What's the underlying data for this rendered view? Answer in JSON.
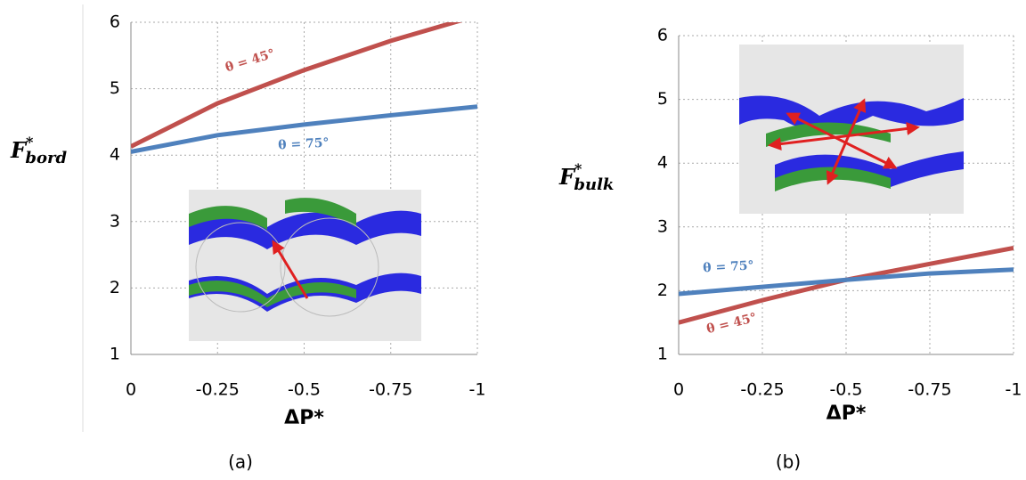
{
  "chart_data": [
    {
      "type": "line",
      "caption": "(a)",
      "x_label": "ΔP*",
      "y_label": "F",
      "y_label_sup": "*",
      "y_label_sub": "bord",
      "x": [
        0,
        -0.25,
        -0.5,
        -0.75,
        -1
      ],
      "xlim": [
        0,
        -1
      ],
      "xticks": [
        0,
        -0.25,
        -0.5,
        -0.75,
        -1
      ],
      "ylim": [
        1,
        6
      ],
      "yticks": [
        1,
        2,
        3,
        4,
        5,
        6
      ],
      "grid": true,
      "series": [
        {
          "name": "θ = 45°",
          "color": "#c0504d",
          "values": [
            4.13,
            4.78,
            5.28,
            5.72,
            6.1
          ]
        },
        {
          "name": "θ = 75°",
          "color": "#4f81bd",
          "values": [
            4.05,
            4.3,
            4.46,
            4.6,
            4.73
          ]
        }
      ]
    },
    {
      "type": "line",
      "caption": "(b)",
      "x_label": "ΔP*",
      "y_label": "F",
      "y_label_sup": "*",
      "y_label_sub": "bulk",
      "x": [
        0,
        -0.25,
        -0.5,
        -0.75,
        -1
      ],
      "xlim": [
        0,
        -1
      ],
      "xticks": [
        0,
        -0.25,
        -0.5,
        -0.75,
        -1
      ],
      "ylim": [
        1,
        6
      ],
      "yticks": [
        1,
        2,
        3,
        4,
        5,
        6
      ],
      "grid": true,
      "series": [
        {
          "name": "θ = 45°",
          "color": "#c0504d",
          "values": [
            1.5,
            1.85,
            2.17,
            2.42,
            2.67
          ]
        },
        {
          "name": "θ = 75°",
          "color": "#4f81bd",
          "values": [
            1.95,
            2.06,
            2.17,
            2.27,
            2.33
          ]
        }
      ]
    }
  ]
}
